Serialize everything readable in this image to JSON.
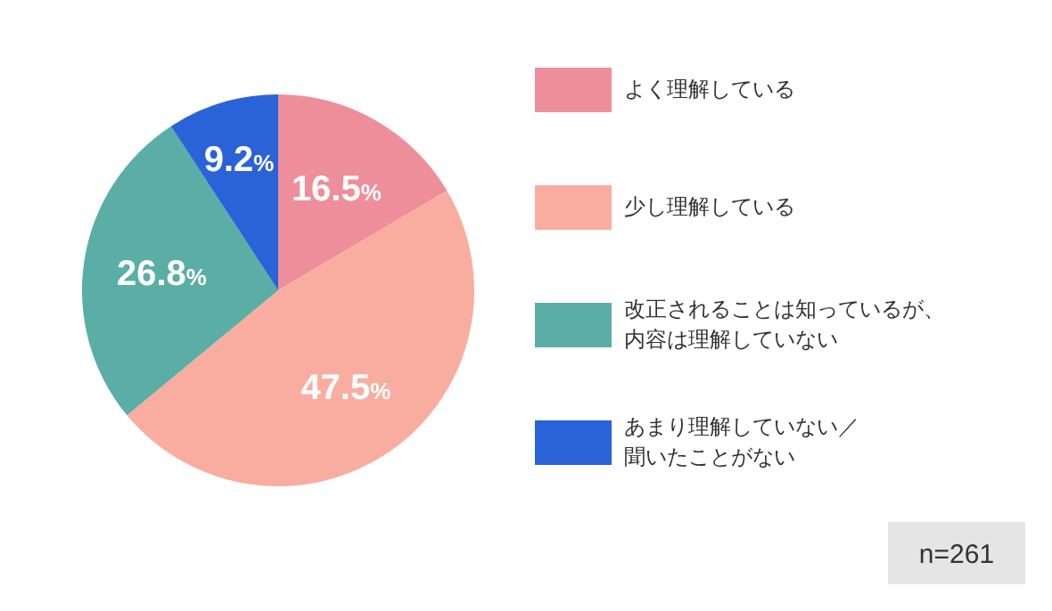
{
  "chart_data": {
    "type": "pie",
    "categories": [
      "よく理解している",
      "少し理解している",
      "改正されることは知っているが、内容は理解していない",
      "あまり理解していない／聞いたことがない"
    ],
    "values": [
      16.5,
      47.5,
      26.8,
      9.2
    ],
    "colors": [
      "#ee8e9b",
      "#f9ada0",
      "#5aaea6",
      "#2a63d8"
    ],
    "value_labels": [
      "16.5%",
      "47.5%",
      "26.8%",
      "9.2%"
    ],
    "legend": "right",
    "annotations": [
      "n=261"
    ]
  }
}
